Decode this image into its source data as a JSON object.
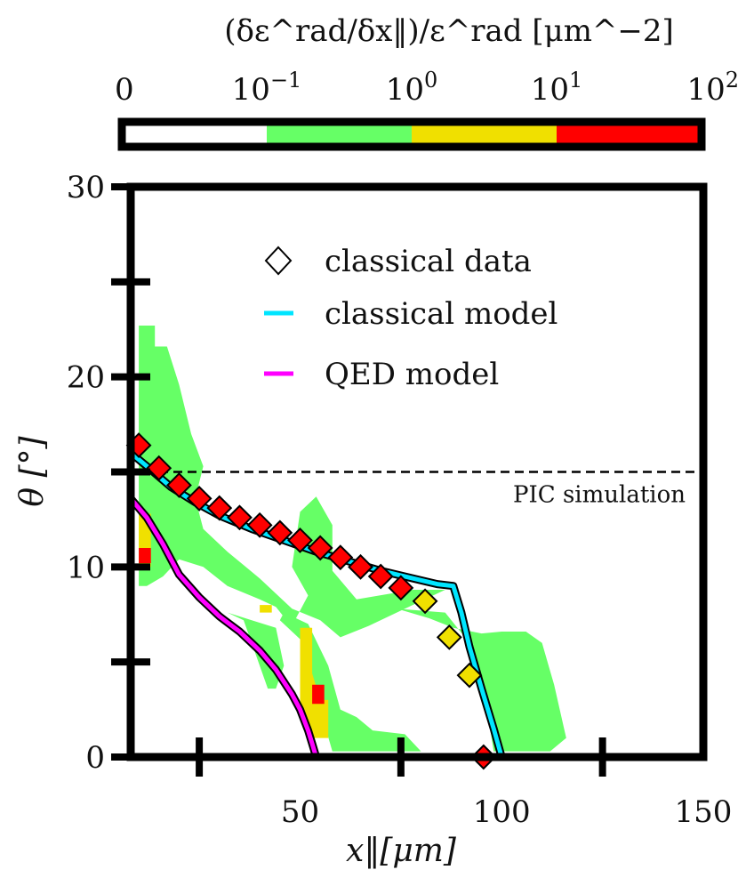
{
  "chart_data": {
    "type": "scatter",
    "xlabel": "x‖[μm]",
    "ylabel": "θ [°]",
    "xlim": [
      8,
      150
    ],
    "ylim": [
      0,
      30
    ],
    "x_ticks": [
      {
        "value": 50,
        "label": "50"
      },
      {
        "value": 100,
        "label": "100"
      },
      {
        "value": 150,
        "label": "150"
      }
    ],
    "y_ticks": [
      {
        "value": 0,
        "label": "0"
      },
      {
        "value": 10,
        "label": "10"
      },
      {
        "value": 20,
        "label": "20"
      },
      {
        "value": 30,
        "label": "30"
      }
    ],
    "x_minor_ticks": [
      25,
      75,
      125
    ],
    "y_minor_ticks": [
      5,
      15,
      25
    ],
    "grid": false,
    "legend_position": "top-right",
    "colorbar": {
      "title": "(δε^rad/δx‖)/ε^rad [μm^−2]",
      "tick_labels": [
        "0",
        "10^−1",
        "10^0",
        "10^1",
        "10^2"
      ],
      "bins": [
        {
          "color": "#ffffff"
        },
        {
          "color": "#66ff66"
        },
        {
          "color": "#f0e000"
        },
        {
          "color": "#ff0000"
        }
      ]
    },
    "annotations": [
      {
        "text": "PIC simulation",
        "y": 15,
        "style": "dashed horizontal line"
      }
    ],
    "heatmap": {
      "level_colors": {
        "1": "#66ff66",
        "2": "#f0e000",
        "3": "#ff0000"
      },
      "regions": [
        {
          "level": 1,
          "points": [
            [
              10,
              22.7
            ],
            [
              14,
              22.7
            ],
            [
              14,
              21.6
            ],
            [
              17,
              21.6
            ],
            [
              20,
              19.6
            ],
            [
              23,
              17
            ],
            [
              26,
              15.3
            ],
            [
              24,
              13.6
            ],
            [
              26,
              12
            ],
            [
              32,
              10.8
            ],
            [
              40,
              9.4
            ],
            [
              48,
              7.8
            ],
            [
              55,
              7.2
            ],
            [
              60,
              6.3
            ],
            [
              67,
              6.9
            ],
            [
              76,
              7.8
            ],
            [
              86,
              8.8
            ],
            [
              78,
              8.8
            ],
            [
              64,
              8.3
            ],
            [
              58,
              9.8
            ],
            [
              58,
              12.2
            ],
            [
              54,
              13.7
            ],
            [
              50,
              12.9
            ],
            [
              48,
              10
            ],
            [
              52,
              8.5
            ],
            [
              49,
              7.3
            ],
            [
              47,
              7.1
            ],
            [
              44,
              7.9
            ],
            [
              40,
              8.3
            ],
            [
              32,
              9
            ],
            [
              26,
              10
            ],
            [
              20,
              10.4
            ],
            [
              16,
              9.5
            ],
            [
              12,
              9
            ],
            [
              10,
              9
            ]
          ]
        },
        {
          "level": 1,
          "points": [
            [
              46,
              7.6
            ],
            [
              52,
              7
            ],
            [
              57,
              4.8
            ],
            [
              60,
              2.5
            ],
            [
              64,
              2.1
            ],
            [
              68,
              1.4
            ],
            [
              76,
              1.2
            ],
            [
              80,
              0.3
            ],
            [
              74,
              0.3
            ],
            [
              66,
              0.3
            ],
            [
              58,
              0.3
            ],
            [
              55,
              2.5
            ],
            [
              50,
              6.2
            ],
            [
              45,
              7.2
            ]
          ]
        },
        {
          "level": 1,
          "points": [
            [
              74,
              7.8
            ],
            [
              82,
              7.3
            ],
            [
              88,
              6.8
            ],
            [
              95,
              6.5
            ],
            [
              100,
              6.6
            ],
            [
              106,
              6.6
            ],
            [
              110,
              6
            ],
            [
              113,
              3.8
            ],
            [
              116,
              1
            ],
            [
              112,
              0.3
            ],
            [
              103,
              0.3
            ],
            [
              98,
              0.3
            ],
            [
              96,
              3
            ],
            [
              92,
              6
            ],
            [
              86,
              7.6
            ]
          ]
        },
        {
          "level": 1,
          "points": [
            [
              32,
              7.6
            ],
            [
              38,
              7.2
            ],
            [
              44,
              6.8
            ],
            [
              46,
              4.8
            ],
            [
              44,
              3.6
            ],
            [
              42,
              3.6
            ],
            [
              36,
              7.2
            ]
          ]
        },
        {
          "level": 2,
          "points": [
            [
              10,
              12.8
            ],
            [
              13,
              12.8
            ],
            [
              13,
              10
            ],
            [
              10,
              10
            ]
          ]
        },
        {
          "level": 2,
          "points": [
            [
              50,
              6.8
            ],
            [
              53,
              6.8
            ],
            [
              53,
              4.4
            ],
            [
              55,
              3
            ],
            [
              57,
              3
            ],
            [
              57,
              1
            ],
            [
              52,
              1
            ],
            [
              50,
              3
            ]
          ]
        },
        {
          "level": 2,
          "points": [
            [
              40,
              8
            ],
            [
              43,
              8
            ],
            [
              43,
              7.6
            ],
            [
              40,
              7.6
            ]
          ]
        },
        {
          "level": 3,
          "points": [
            [
              10,
              11
            ],
            [
              13,
              11
            ],
            [
              13,
              10.2
            ],
            [
              10,
              10.2
            ]
          ]
        },
        {
          "level": 3,
          "points": [
            [
              53,
              3.8
            ],
            [
              56,
              3.8
            ],
            [
              56,
              2.8
            ],
            [
              53,
              2.8
            ]
          ]
        }
      ]
    },
    "series": [
      {
        "name": "classical data",
        "kind": "markers",
        "marker": "diamond",
        "points": [
          [
            10,
            16.4,
            3
          ],
          [
            15,
            15.2,
            3
          ],
          [
            20,
            14.3,
            3
          ],
          [
            25,
            13.6,
            3
          ],
          [
            30,
            13.1,
            3
          ],
          [
            35,
            12.6,
            3
          ],
          [
            40,
            12.2,
            3
          ],
          [
            45,
            11.8,
            3
          ],
          [
            50,
            11.4,
            3
          ],
          [
            55,
            11,
            3
          ],
          [
            60,
            10.5,
            3
          ],
          [
            65,
            10,
            3
          ],
          [
            70,
            9.5,
            3
          ],
          [
            75,
            8.9,
            3
          ],
          [
            81,
            8.2,
            2
          ],
          [
            87,
            6.3,
            2
          ],
          [
            92,
            4.3,
            2
          ],
          [
            95.5,
            0,
            3
          ]
        ]
      },
      {
        "name": "classical model",
        "kind": "line",
        "color": "#00e5ff",
        "x": [
          8,
          12,
          18,
          24,
          30,
          38,
          46,
          54,
          62,
          70,
          78,
          84,
          88,
          90,
          92,
          95,
          98,
          100
        ],
        "y": [
          16,
          15.3,
          14.2,
          13.4,
          12.7,
          12,
          11.4,
          10.8,
          10.3,
          9.8,
          9.4,
          9.1,
          9.0,
          7.6,
          5.8,
          3.6,
          1.5,
          0
        ]
      },
      {
        "name": "QED model",
        "kind": "line",
        "color": "#ff00ff",
        "x": [
          8,
          12,
          16,
          20,
          25,
          30,
          35,
          40,
          44,
          48,
          50,
          52,
          53,
          54
        ],
        "y": [
          13.6,
          12.6,
          11.2,
          9.6,
          8.4,
          7.4,
          6.6,
          5.6,
          4.6,
          3.3,
          2.5,
          1.4,
          0.7,
          0
        ]
      }
    ]
  }
}
